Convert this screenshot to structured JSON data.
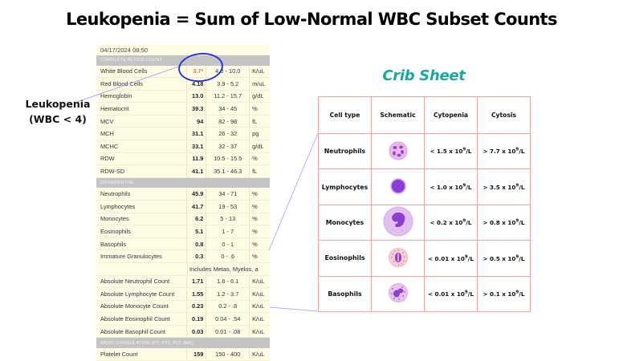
{
  "title": "Leukopenia = Sum of Low-Normal WBC Subset Counts",
  "annotation": {
    "label_line1": "Leukopenia",
    "label_line2": "(WBC < 4)",
    "circle_color": "#1f2bd6",
    "pointer_color": "#9a9de8"
  },
  "lab_report": {
    "date": "04/17/2024 08:50",
    "sections": [
      {
        "header": "COMPLETE BLOOD COUNT",
        "rows": [
          {
            "name": "White Blood Cells",
            "value": "3.7*",
            "range": "4.0 - 10.0",
            "unit": "K/uL",
            "abnormal": true
          },
          {
            "name": "Red Blood Cells",
            "value": "4.18",
            "range": "3.9 - 5.2",
            "unit": "m/uL"
          },
          {
            "name": "Hemoglobin",
            "value": "13.0",
            "range": "11.2 - 15.7",
            "unit": "g/dL"
          },
          {
            "name": "Hematocrit",
            "value": "39.3",
            "range": "34 - 45",
            "unit": "%"
          },
          {
            "name": "MCV",
            "value": "94",
            "range": "82 - 98",
            "unit": "fL"
          },
          {
            "name": "MCH",
            "value": "31.1",
            "range": "26 - 32",
            "unit": "pg"
          },
          {
            "name": "MCHC",
            "value": "33.1",
            "range": "32 - 37",
            "unit": "g/dL"
          },
          {
            "name": "RDW",
            "value": "11.9",
            "range": "10.5 - 15.5",
            "unit": "%"
          },
          {
            "name": "RDW-SD",
            "value": "41.1",
            "range": "35.1 - 46.3",
            "unit": "fL"
          }
        ]
      },
      {
        "header": "DIFFERENTIAL",
        "rows": [
          {
            "name": "Neutrophils",
            "value": "45.9",
            "range": "34 - 71",
            "unit": "%"
          },
          {
            "name": "Lymphocytes",
            "value": "41.7",
            "range": "19 - 53",
            "unit": "%"
          },
          {
            "name": "Monocytes",
            "value": "6.2",
            "range": "5 - 13",
            "unit": "%"
          },
          {
            "name": "Eosinophils",
            "value": "5.1",
            "range": "1 - 7",
            "unit": "%"
          },
          {
            "name": "Basophils",
            "value": "0.8",
            "range": "0 - 1",
            "unit": "%"
          },
          {
            "name": "Immature Granulocytes",
            "value": "0.3",
            "range": "0 - .6",
            "unit": "%"
          }
        ],
        "note": "Includes Metas, Myelos, a",
        "rows_after_note": [
          {
            "name": "Absolute Neutrophil Count",
            "value": "1.71",
            "range": "1.6 - 6.1",
            "unit": "K/uL"
          },
          {
            "name": "Absolute Lymphocyte Count",
            "value": "1.55",
            "range": "1.2 - 3.7",
            "unit": "K/uL"
          },
          {
            "name": "Absolute Monocyte Count",
            "value": "0.23",
            "range": "0.2 - .8",
            "unit": "K/uL"
          },
          {
            "name": "Absolute Eosinophil Count",
            "value": "0.19",
            "range": "0.04 - .54",
            "unit": "K/uL"
          },
          {
            "name": "Absolute Basophil Count",
            "value": "0.03",
            "range": "0.01 - .08",
            "unit": "K/uL"
          }
        ]
      },
      {
        "header": "BASIC COAGULATION (PT, PTT, PLT, INR)",
        "rows": [
          {
            "name": "Platelet Count",
            "value": "159",
            "range": "150 - 400",
            "unit": "K/uL"
          }
        ]
      }
    ]
  },
  "crib_sheet": {
    "title": "Crib Sheet",
    "title_color": "#1aa89c",
    "border_color": "#f4a3a3",
    "headers": [
      "Cell type",
      "Schematic",
      "Cytopenia",
      "Cytosis"
    ],
    "rows": [
      {
        "cell_type": "Neutrophils",
        "schematic": "neutrophil-icon",
        "cytopenia": {
          "prefix": "< 1.5 x 10",
          "exp": "9",
          "suffix": "/L"
        },
        "cytosis": {
          "prefix": "> 7.7 x 10",
          "exp": "9",
          "suffix": "/L"
        }
      },
      {
        "cell_type": "Lymphocytes",
        "schematic": "lymphocyte-icon",
        "cytopenia": {
          "prefix": "< 1.0 x 10",
          "exp": "9",
          "suffix": "/L"
        },
        "cytosis": {
          "prefix": "> 3.5 x 10",
          "exp": "9",
          "suffix": "/L"
        }
      },
      {
        "cell_type": "Monocytes",
        "schematic": "monocyte-icon",
        "cytopenia": {
          "prefix": "< 0.2 x 10",
          "exp": "9",
          "suffix": "/L"
        },
        "cytosis": {
          "prefix": "> 0.8 x 10",
          "exp": "9",
          "suffix": "/L"
        }
      },
      {
        "cell_type": "Eosinophils",
        "schematic": "eosinophil-icon",
        "cytopenia": {
          "prefix": "< 0.01 x 10",
          "exp": "9",
          "suffix": "/L"
        },
        "cytosis": {
          "prefix": "> 0.5 x 10",
          "exp": "9",
          "suffix": "/L"
        }
      },
      {
        "cell_type": "Basophils",
        "schematic": "basophil-icon",
        "cytopenia": {
          "prefix": "< 0.01 x 10",
          "exp": "9",
          "suffix": "/L"
        },
        "cytosis": {
          "prefix": "> 0.1 x 10",
          "exp": "9",
          "suffix": "/L"
        }
      }
    ]
  }
}
